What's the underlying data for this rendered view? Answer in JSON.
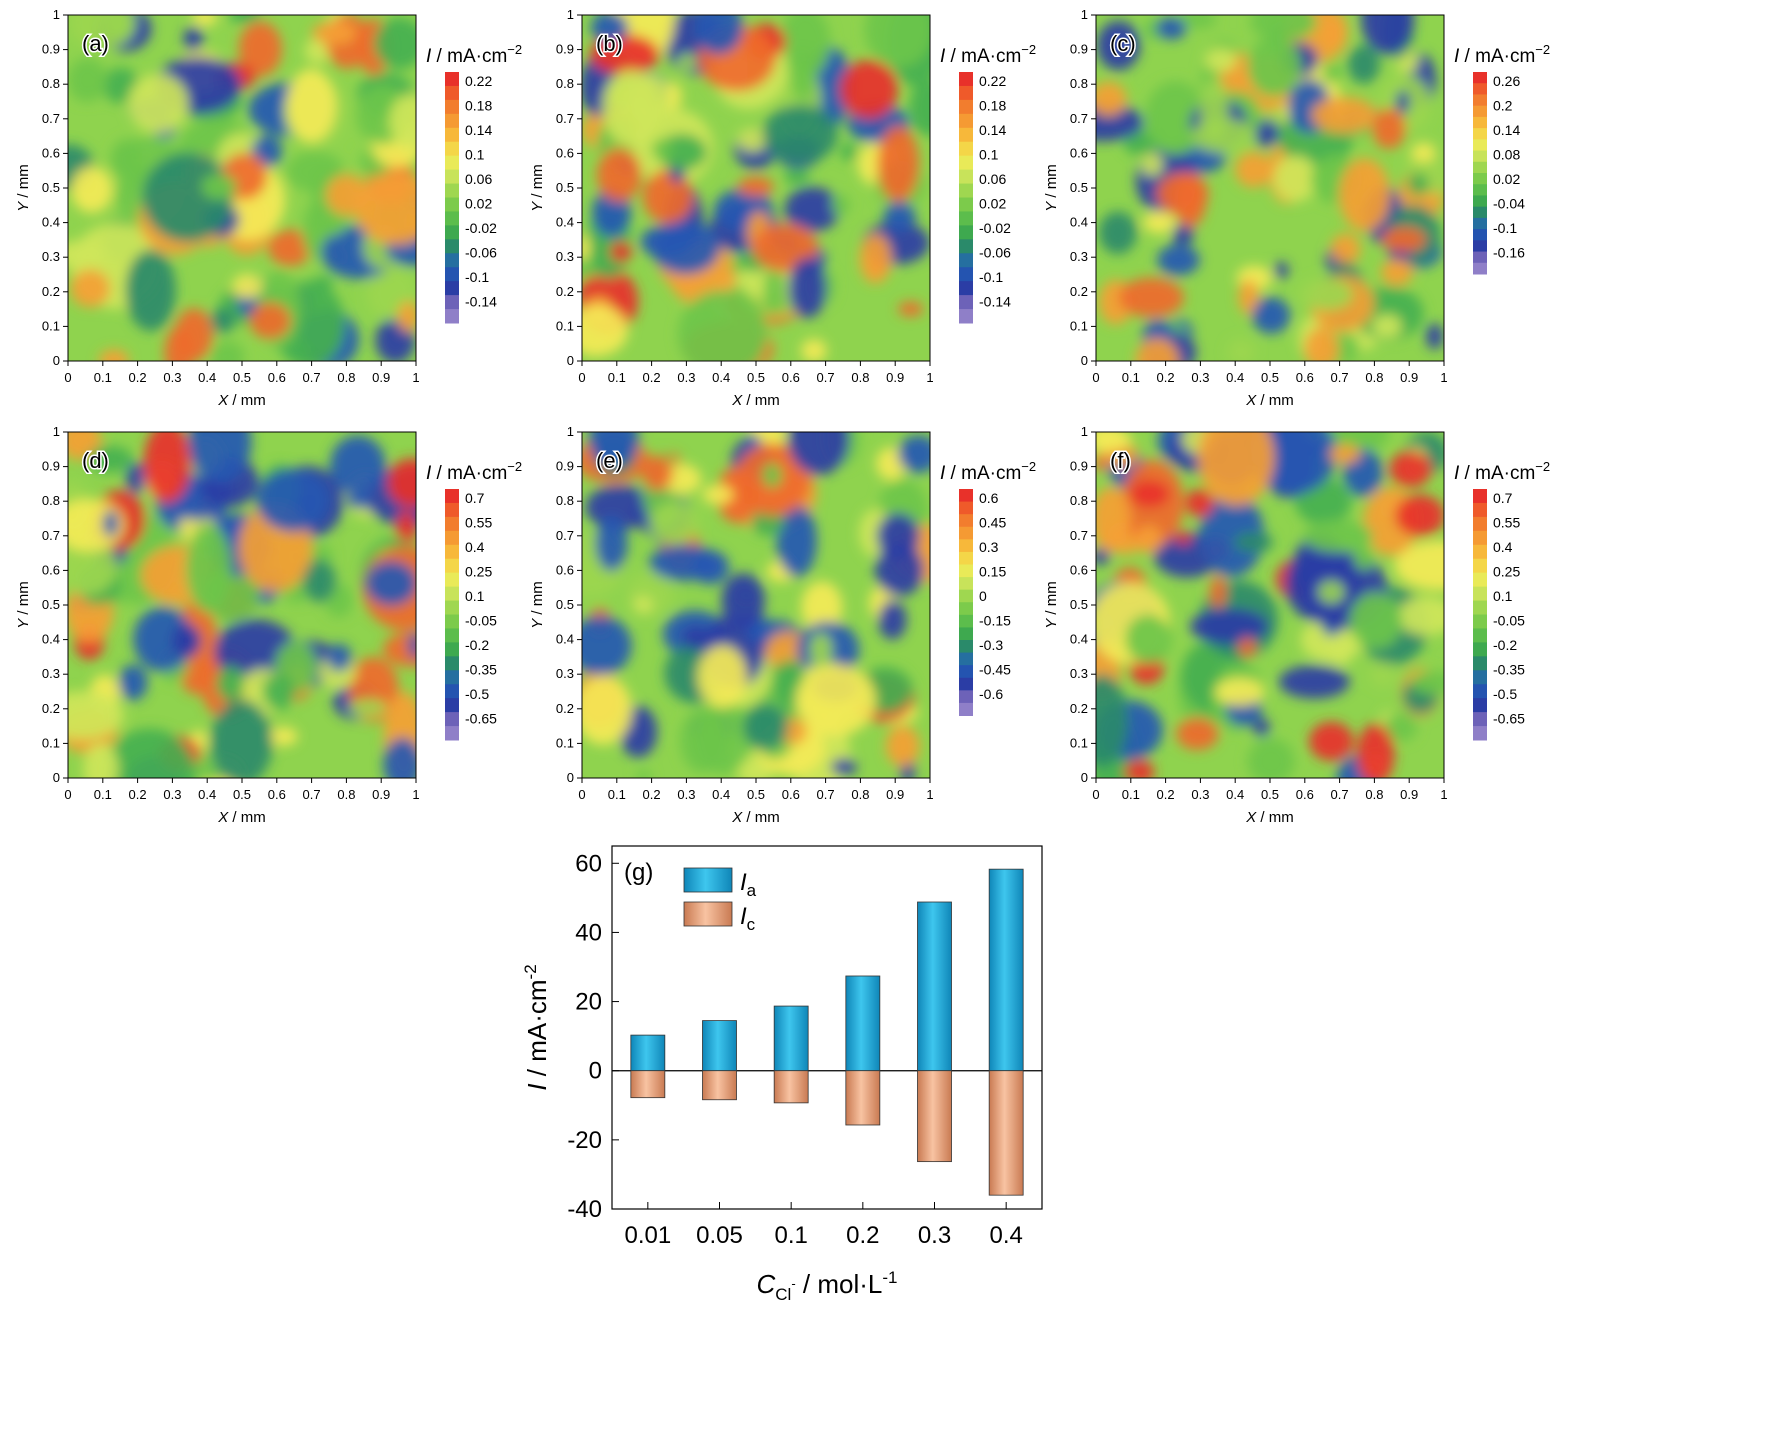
{
  "panels": [
    {
      "label": "(a)",
      "ticks": [
        "0.22",
        "0.18",
        "0.14",
        "0.1",
        "0.06",
        "0.02",
        "-0.02",
        "-0.06",
        "-0.1",
        "-0.14"
      ],
      "seed": 11,
      "amp": 1.0
    },
    {
      "label": "(b)",
      "ticks": [
        "0.22",
        "0.18",
        "0.14",
        "0.1",
        "0.06",
        "0.02",
        "-0.02",
        "-0.06",
        "-0.1",
        "-0.14"
      ],
      "seed": 23,
      "amp": 1.15
    },
    {
      "label": "(c)",
      "ticks": [
        "0.26",
        "0.2",
        "0.14",
        "0.08",
        "0.02",
        "-0.04",
        "-0.1",
        "-0.16"
      ],
      "seed": 37,
      "amp": 0.85
    },
    {
      "label": "(d)",
      "ticks": [
        "0.7",
        "0.55",
        "0.4",
        "0.25",
        "0.1",
        "-0.05",
        "-0.2",
        "-0.35",
        "-0.5",
        "-0.65"
      ],
      "seed": 41,
      "amp": 1.3
    },
    {
      "label": "(e)",
      "ticks": [
        "0.6",
        "0.45",
        "0.3",
        "0.15",
        "0",
        "-0.15",
        "-0.3",
        "-0.45",
        "-0.6"
      ],
      "seed": 53,
      "amp": 1.1
    },
    {
      "label": "(f)",
      "ticks": [
        "0.7",
        "0.55",
        "0.4",
        "0.25",
        "0.1",
        "-0.05",
        "-0.2",
        "-0.35",
        "-0.5",
        "-0.65"
      ],
      "seed": 67,
      "amp": 1.4
    }
  ],
  "map_axes": {
    "xlabel_italic": "X",
    "xlabel_rest": " / mm",
    "ylabel_italic": "Y",
    "ylabel_rest": " / mm",
    "ticks": [
      "0",
      "0.1",
      "0.2",
      "0.3",
      "0.4",
      "0.5",
      "0.6",
      "0.7",
      "0.8",
      "0.9",
      "1"
    ],
    "colorbar_title": "I / mA·cm",
    "colorbar_title_italic": "I",
    "colorbar_title_rest": " / mA·cm",
    "colorbar_title_sup": "−2"
  },
  "chart_data": {
    "type": "bar",
    "label": "(g)",
    "categories": [
      "0.01",
      "0.05",
      "0.1",
      "0.2",
      "0.3",
      "0.4"
    ],
    "series": [
      {
        "name": "I_a",
        "legend_main": "I",
        "legend_sub": "a",
        "color": "#1aa6d8",
        "values": [
          10.3,
          14.5,
          18.7,
          27.4,
          48.8,
          58.3
        ]
      },
      {
        "name": "I_c",
        "legend_main": "I",
        "legend_sub": "c",
        "color": "#f0a27a",
        "values": [
          -7.8,
          -8.4,
          -9.3,
          -15.7,
          -26.3,
          -36.0
        ]
      }
    ],
    "ylim": [
      -40,
      65
    ],
    "yticks": [
      60,
      40,
      20,
      0,
      -20,
      -40
    ],
    "ylabel": "I / mA·cm",
    "ylabel_italic": "I",
    "ylabel_rest": " / mA·cm",
    "ylabel_sup": "-2",
    "xlabel": "C / mol·L",
    "xlabel_italic": "C",
    "xlabel_sub": "Cl",
    "xlabel_subsup": "-",
    "xlabel_rest": " / mol·L",
    "xlabel_sup": "-1"
  }
}
